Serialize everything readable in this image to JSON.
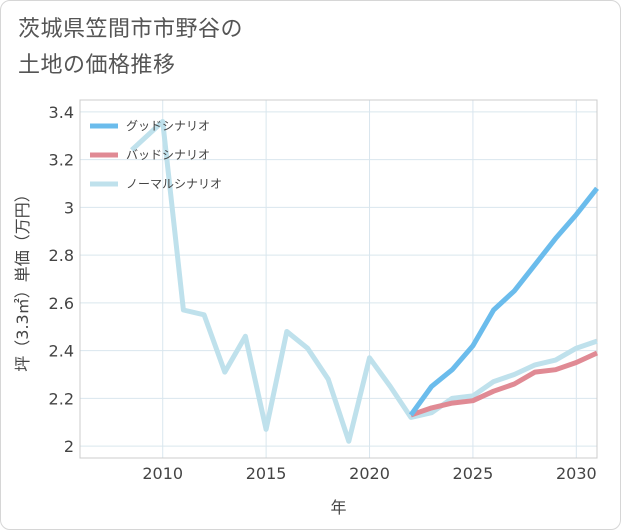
{
  "title": {
    "line1": "茨城県笠間市市野谷の",
    "line2": "土地の価格推移"
  },
  "chart_data": {
    "type": "line",
    "xlabel": "年",
    "ylabel": "坪（3.3㎡）単価（万円）",
    "xlim": [
      2006,
      2031
    ],
    "ylim": [
      1.95,
      3.45
    ],
    "xticks": [
      2010,
      2015,
      2020,
      2025,
      2030
    ],
    "yticks": [
      2,
      2.2,
      2.4,
      2.6,
      2.8,
      3,
      3.2,
      3.4
    ],
    "grid": true,
    "legend_position": "top-left",
    "series": [
      {
        "name": "グッドシナリオ",
        "color": "#6bbcec",
        "x": [
          2022,
          2023,
          2024,
          2025,
          2026,
          2027,
          2028,
          2029,
          2030,
          2031
        ],
        "y": [
          2.13,
          2.25,
          2.32,
          2.42,
          2.57,
          2.65,
          2.76,
          2.87,
          2.97,
          3.08
        ]
      },
      {
        "name": "バッドシナリオ",
        "color": "#e08a94",
        "x": [
          2022,
          2023,
          2024,
          2025,
          2026,
          2027,
          2028,
          2029,
          2030,
          2031
        ],
        "y": [
          2.13,
          2.16,
          2.18,
          2.19,
          2.23,
          2.26,
          2.31,
          2.32,
          2.35,
          2.39
        ]
      },
      {
        "name": "ノーマルシナリオ",
        "color": "#bfe1ec",
        "x": [
          2008.5,
          2010,
          2011,
          2012,
          2013,
          2014,
          2015,
          2016,
          2017,
          2018,
          2019,
          2020,
          2021,
          2022,
          2023,
          2024,
          2025,
          2026,
          2027,
          2028,
          2029,
          2030,
          2031
        ],
        "y": [
          3.24,
          3.36,
          2.57,
          2.55,
          2.31,
          2.46,
          2.07,
          2.48,
          2.41,
          2.28,
          2.02,
          2.37,
          2.25,
          2.12,
          2.14,
          2.2,
          2.21,
          2.27,
          2.3,
          2.34,
          2.36,
          2.41,
          2.44
        ]
      }
    ]
  }
}
